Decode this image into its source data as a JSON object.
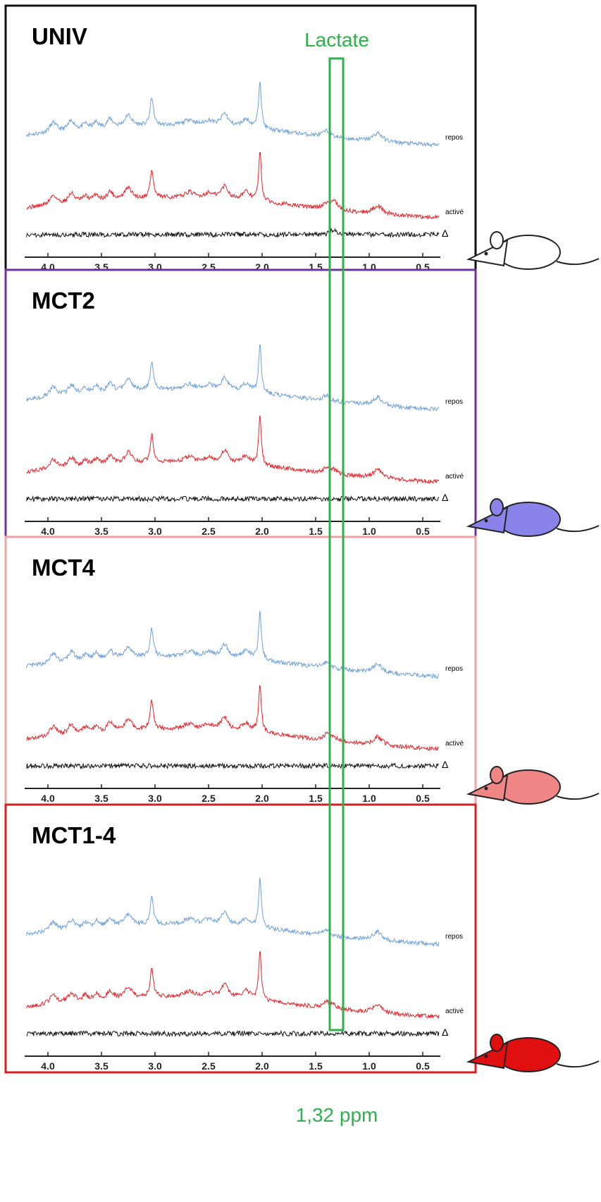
{
  "figure": {
    "lactate_label": "Lactate",
    "ppm_label": "1,32 ppm",
    "trace_labels": {
      "rest": "repos",
      "active": "activé",
      "difference": "Δ"
    },
    "axis_ticks": [
      {
        "value": 4,
        "label": "4.0"
      },
      {
        "value": 3.5,
        "label": "3.5"
      },
      {
        "value": 3,
        "label": "3.0"
      },
      {
        "value": 2.5,
        "label": "2.5"
      },
      {
        "value": 2,
        "label": "2.0"
      },
      {
        "value": 1.5,
        "label": "1.5"
      },
      {
        "value": 1,
        "label": "1.0"
      },
      {
        "value": 0.5,
        "label": "0.5"
      }
    ],
    "panels": [
      {
        "title": "UNIV",
        "frame_color": "#111111",
        "mouse_color": "#ffffff"
      },
      {
        "title": "MCT2",
        "frame_color": "#7030a0",
        "mouse_color": "#8a84ea"
      },
      {
        "title": "MCT4",
        "frame_color": "#f2a3a3",
        "mouse_color": "#f08585"
      },
      {
        "title": "MCT1-4",
        "frame_color": "#d42020",
        "mouse_color": "#e01010"
      }
    ]
  }
}
